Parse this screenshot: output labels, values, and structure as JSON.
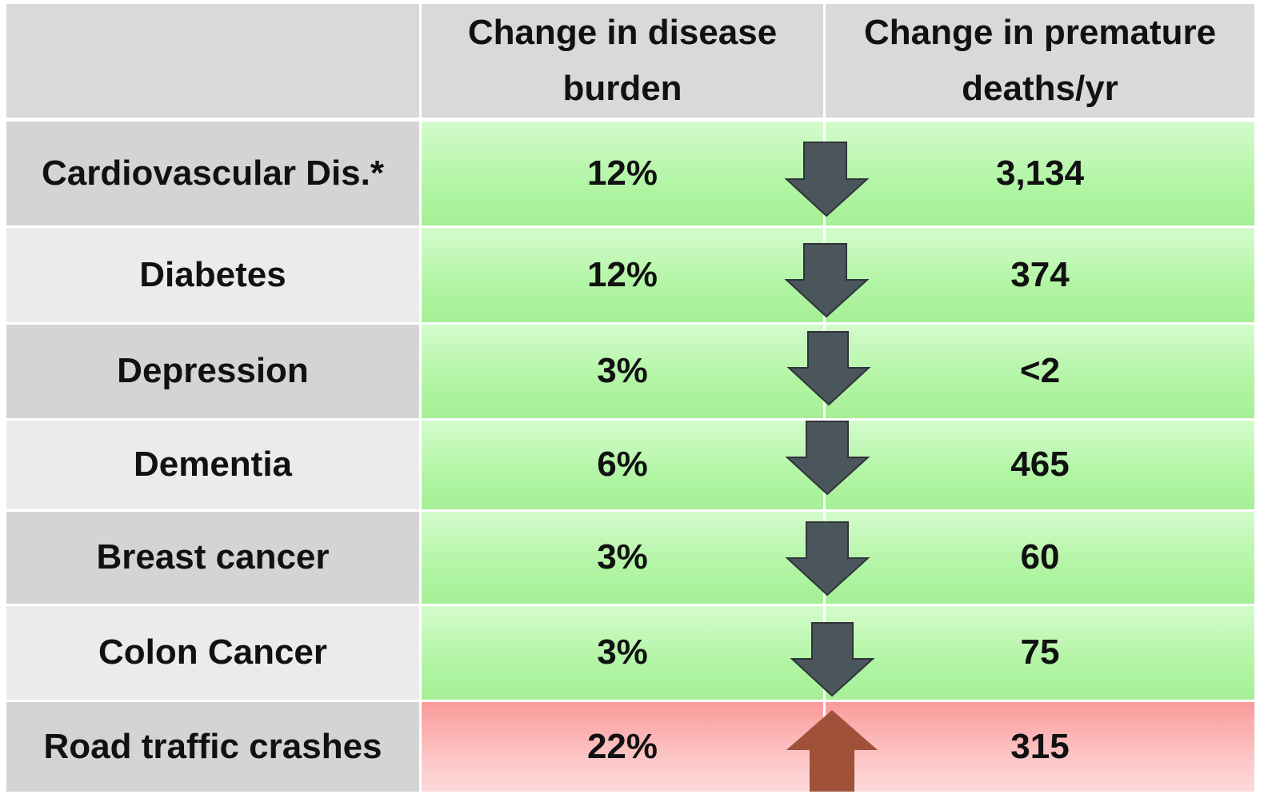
{
  "table": {
    "columns": [
      "Change in disease burden",
      "Change in premature deaths/yr"
    ],
    "rows": [
      [
        "Cardiovascular Dis.*",
        "12%",
        "3,134"
      ],
      [
        "Diabetes",
        "12%",
        "374"
      ],
      [
        "Depression",
        "3%",
        "<2"
      ],
      [
        "Dementia",
        "6%",
        "465"
      ],
      [
        "Breast cancer",
        "3%",
        "60"
      ],
      [
        "Colon Cancer",
        "3%",
        "75"
      ],
      [
        "Road traffic crashes",
        "22%",
        "315"
      ]
    ]
  }
}
